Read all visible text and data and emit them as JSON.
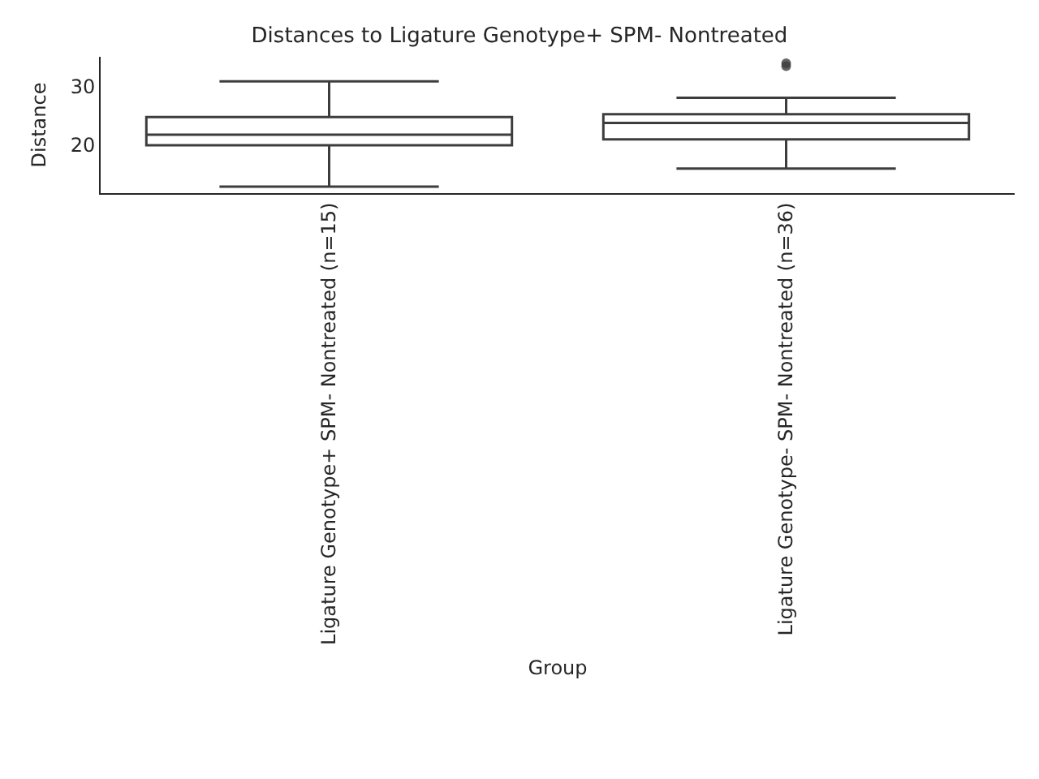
{
  "chart_data": {
    "type": "box",
    "title": "Distances to Ligature Genotype+ SPM- Nontreated",
    "xlabel": "Group",
    "ylabel": "Distance",
    "categories": [
      "Ligature Genotype+ SPM- Nontreated (n=15)",
      "Ligature Genotype- SPM- Nontreated (n=36)"
    ],
    "boxes": [
      {
        "low": 12.9,
        "q1": 20.0,
        "median": 21.8,
        "q3": 24.8,
        "high": 30.9
      },
      {
        "low": 16.0,
        "q1": 21.0,
        "median": 23.8,
        "q3": 25.3,
        "high": 28.1,
        "outliers": [
          33.5,
          34.0
        ]
      }
    ],
    "color": "#3d3d3d",
    "ylim": [
      11.8,
      35.1
    ],
    "yticks": [
      20,
      30
    ],
    "grid": false
  }
}
